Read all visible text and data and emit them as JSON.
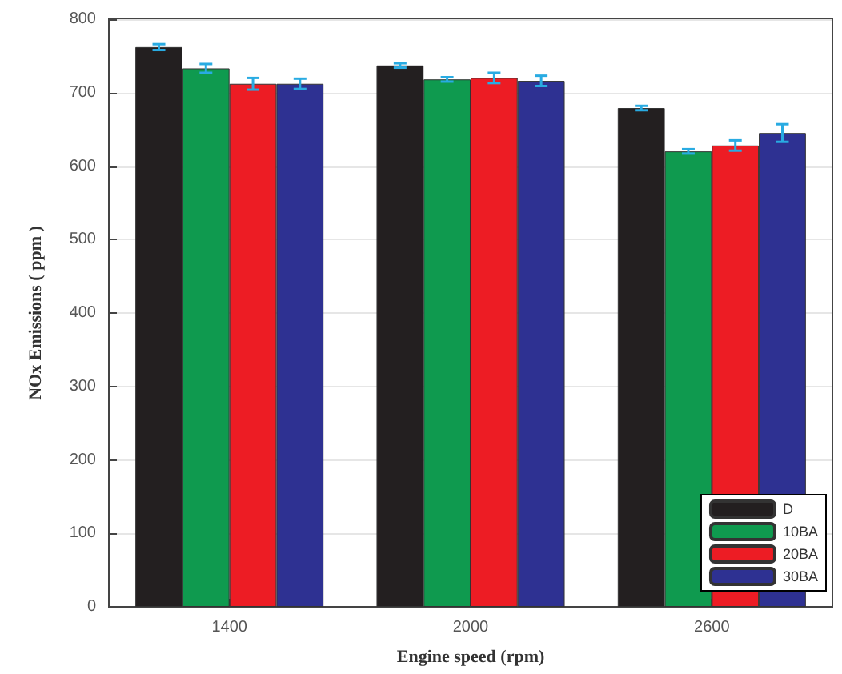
{
  "chart_data": {
    "type": "bar",
    "xlabel": "Engine speed (rpm)",
    "ylabel": "NOx Emissions ( ppm )",
    "categories": [
      "1400",
      "2000",
      "2600"
    ],
    "series": [
      {
        "name": "D",
        "color": "#231f20",
        "values": [
          762,
          737,
          679
        ],
        "errors": [
          4,
          3,
          3
        ]
      },
      {
        "name": "10BA",
        "color": "#0f9a4f",
        "values": [
          733,
          718,
          620
        ],
        "errors": [
          6,
          3,
          3
        ]
      },
      {
        "name": "20BA",
        "color": "#ed1c24",
        "values": [
          712,
          720,
          628
        ],
        "errors": [
          8,
          7,
          7
        ]
      },
      {
        "name": "30BA",
        "color": "#2e3192",
        "values": [
          712,
          716,
          645
        ],
        "errors": [
          7,
          7,
          12
        ]
      }
    ],
    "ylim": [
      0,
      800
    ],
    "yticks": [
      0,
      100,
      200,
      300,
      400,
      500,
      600,
      700,
      800
    ],
    "grid": "y",
    "legend": "bottom right"
  }
}
